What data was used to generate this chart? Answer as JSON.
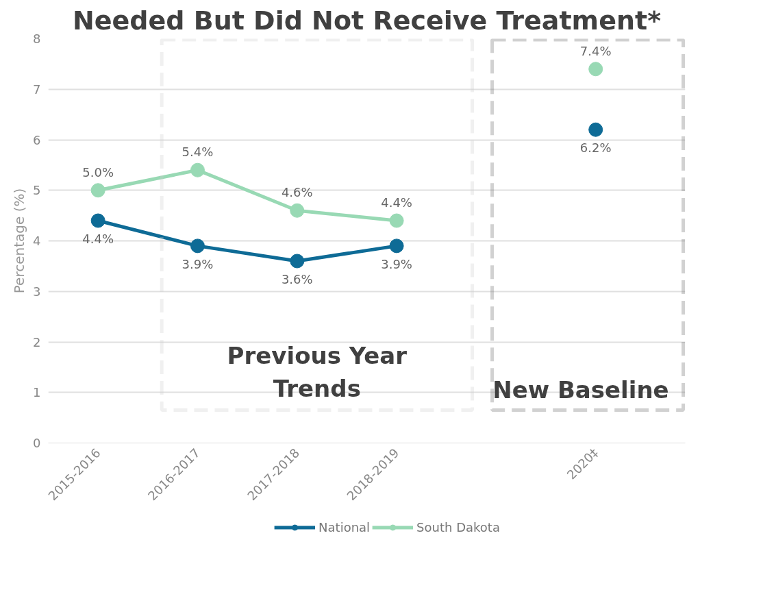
{
  "chart_data": {
    "type": "line",
    "title": "Needed But Did Not Receive Treatment*",
    "ylabel": "Percentage (%)",
    "categories": [
      "2015-2016",
      "2016-2017",
      "2017-2018",
      "2018-2019",
      null,
      "2020‡"
    ],
    "series": [
      {
        "name": "National",
        "color": "#0e6b96",
        "values": [
          4.4,
          3.9,
          3.6,
          3.9,
          null,
          6.2
        ],
        "value_labels": [
          "4.4%",
          "3.9%",
          "3.6%",
          "3.9%",
          null,
          "6.2%"
        ]
      },
      {
        "name": "South Dakota",
        "color": "#98d9b4",
        "values": [
          5.0,
          5.4,
          4.6,
          4.4,
          null,
          7.4
        ],
        "value_labels": [
          "5.0%",
          "5.4%",
          "4.6%",
          "4.4%",
          null,
          "7.4%"
        ]
      }
    ],
    "ylim": [
      0,
      8
    ],
    "yticks": [
      0,
      1,
      2,
      3,
      4,
      5,
      6,
      7,
      8
    ],
    "grid": "y",
    "legend": "bottom",
    "marker": "circle",
    "line_style": "solid",
    "annotations": [
      "Previous Year Trends",
      "New Baseline"
    ]
  }
}
